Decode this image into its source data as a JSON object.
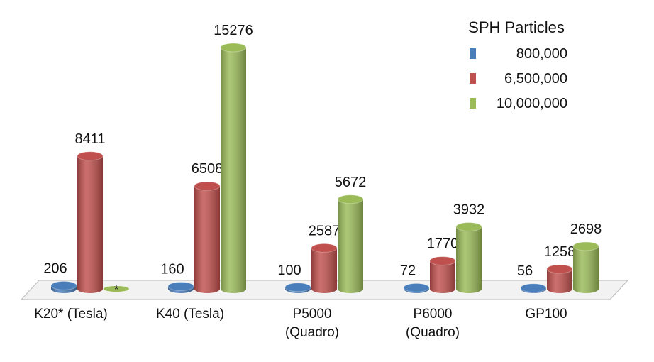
{
  "chart_data": {
    "type": "cylinder-bar",
    "categories": [
      "K20* (Tesla)",
      "K40 (Tesla)",
      "P5000\n(Quadro)",
      "P6000\n(Quadro)",
      "GP100"
    ],
    "legend_title": "SPH Particles",
    "legend_position": "upper right",
    "series": [
      {
        "name": "800,000",
        "color": "#4a7ebb",
        "values": [
          206,
          160,
          100,
          72,
          56
        ]
      },
      {
        "name": "6,500,000",
        "color": "#c0504d",
        "values": [
          8411,
          6508,
          2587,
          1770,
          1258
        ]
      },
      {
        "name": "10,000,000",
        "color": "#9bbb59",
        "values": [
          null,
          15276,
          5672,
          3932,
          2698
        ],
        "value_labels": [
          "*",
          "15276",
          "5672",
          "3932",
          "2698"
        ]
      }
    ]
  }
}
